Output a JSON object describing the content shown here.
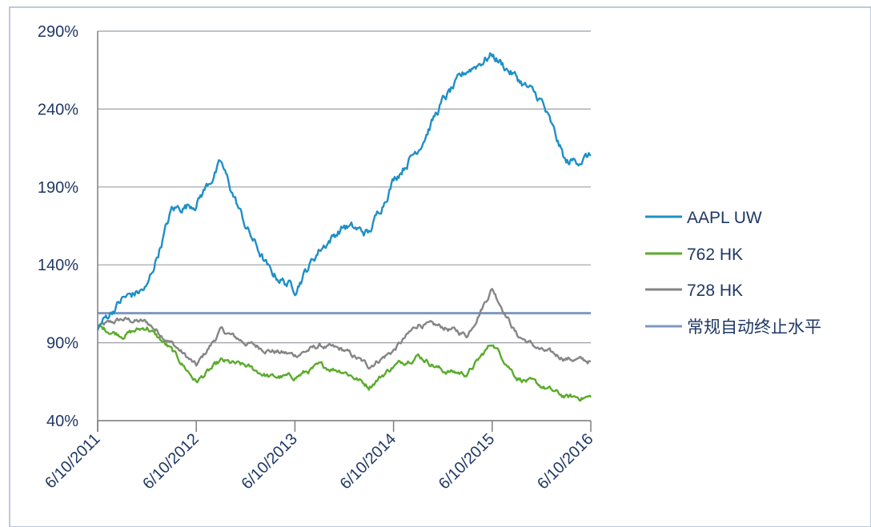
{
  "chart_data": {
    "type": "line",
    "title": "",
    "xlabel": "",
    "ylabel": "",
    "x_tick_labels": [
      "6/10/2011",
      "6/10/2012",
      "6/10/2013",
      "6/10/2014",
      "6/10/2015",
      "6/10/2016"
    ],
    "y_tick_labels": [
      "40%",
      "90%",
      "140%",
      "190%",
      "240%",
      "290%"
    ],
    "ylim": [
      40,
      290
    ],
    "grid": true,
    "legend_position": "right",
    "x": [
      "6/10/2011",
      "9/10/2011",
      "12/10/2011",
      "3/10/2012",
      "6/10/2012",
      "9/10/2012",
      "12/10/2012",
      "3/10/2013",
      "6/10/2013",
      "9/10/2013",
      "12/10/2013",
      "3/10/2014",
      "6/10/2014",
      "9/10/2014",
      "12/10/2014",
      "3/10/2015",
      "6/10/2015",
      "9/10/2015",
      "12/10/2015",
      "3/10/2016",
      "6/10/2016"
    ],
    "series": [
      {
        "name": "AAPL UW",
        "color": "#1f8fc6",
        "values": [
          100,
          118,
          125,
          175,
          180,
          205,
          165,
          135,
          125,
          150,
          165,
          160,
          195,
          215,
          245,
          265,
          275,
          260,
          245,
          205,
          210
        ]
      },
      {
        "name": "762 HK",
        "color": "#5aab2b",
        "values": [
          100,
          95,
          100,
          85,
          65,
          78,
          75,
          68,
          68,
          75,
          72,
          62,
          75,
          82,
          72,
          70,
          90,
          68,
          62,
          55,
          55
        ]
      },
      {
        "name": "728 HK",
        "color": "#858585",
        "values": [
          100,
          105,
          103,
          90,
          75,
          98,
          90,
          85,
          82,
          88,
          85,
          75,
          85,
          102,
          100,
          95,
          125,
          95,
          85,
          80,
          78
        ]
      },
      {
        "name": "常规自动终止水平",
        "color": "#7f98bf",
        "values": [
          109,
          109,
          109,
          109,
          109,
          109,
          109,
          109,
          109,
          109,
          109,
          109,
          109,
          109,
          109,
          109,
          109,
          109,
          109,
          109,
          109
        ]
      }
    ]
  }
}
